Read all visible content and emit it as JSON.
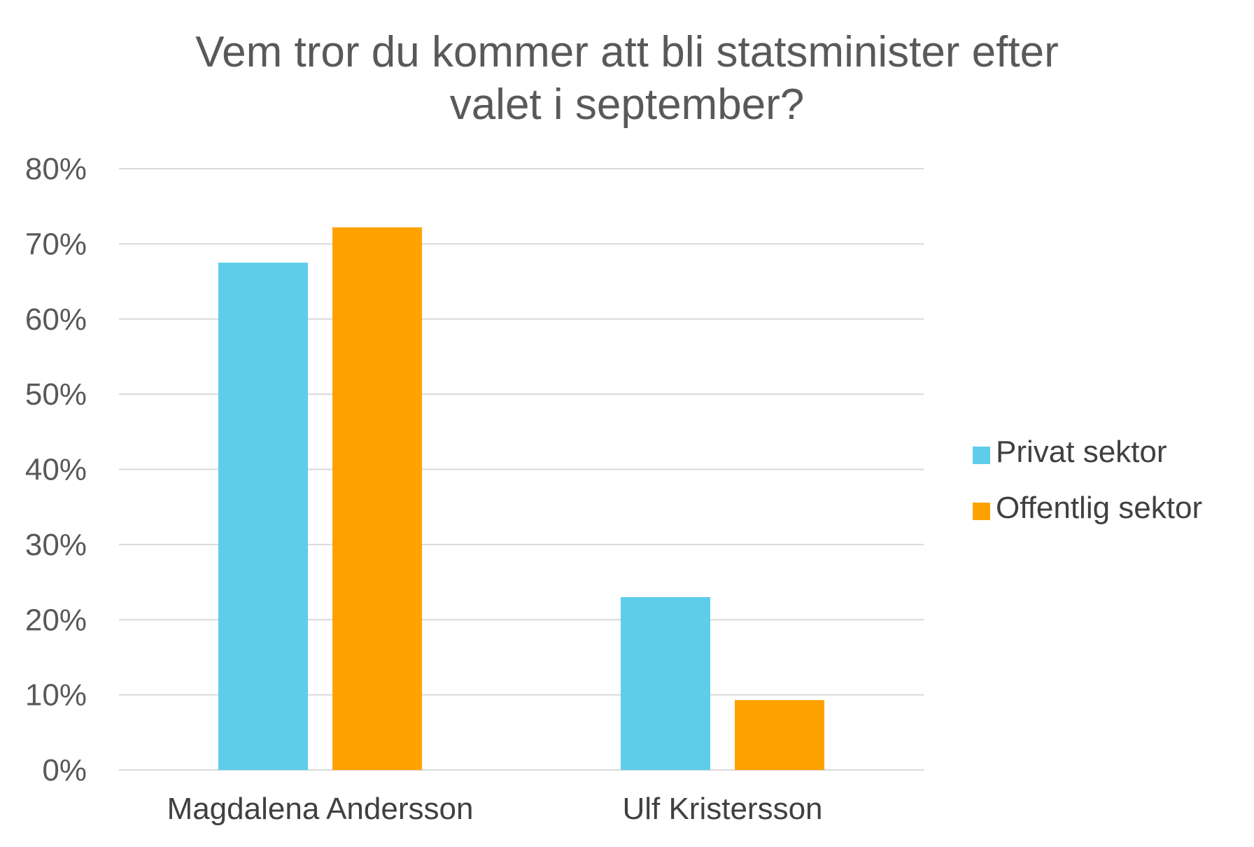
{
  "chart_data": {
    "type": "bar",
    "title": "Vem tror du kommer att bli statsminister efter valet i september?",
    "title_lines": [
      "Vem tror du kommer att bli statsminister efter",
      "valet i september?"
    ],
    "categories": [
      "Magdalena Andersson",
      "Ulf Kristersson"
    ],
    "series": [
      {
        "name": "Privat sektor",
        "color": "#5ecdea",
        "values": [
          67.5,
          23
        ]
      },
      {
        "name": "Offentlig sektor",
        "color": "#ffa200",
        "values": [
          72.2,
          9.3
        ]
      }
    ],
    "ylim": [
      0,
      80
    ],
    "yticks": [
      "0%",
      "10%",
      "20%",
      "30%",
      "40%",
      "50%",
      "60%",
      "70%",
      "80%"
    ],
    "ytick_values": [
      0,
      10,
      20,
      30,
      40,
      50,
      60,
      70,
      80
    ],
    "grid": true,
    "gridline_color": "#d9d9d9",
    "legend_position": "right"
  }
}
